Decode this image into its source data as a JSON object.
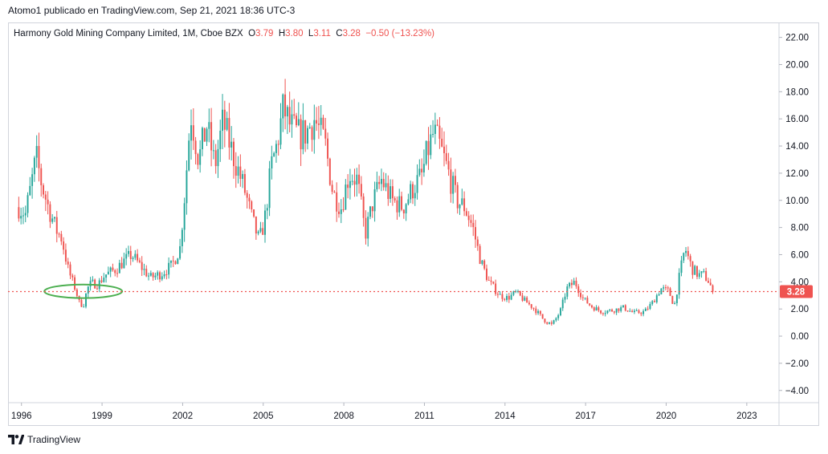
{
  "publication": {
    "text": "Atomo1 publicado en TradingView.com, Sep 21, 2021 18:36 UTC-3"
  },
  "legend": {
    "symbol": "Harmony Gold Mining Company Limited, 1M, Cboe BZX",
    "o_label": "O",
    "o": "3.79",
    "h_label": "H",
    "h": "3.80",
    "l_label": "L",
    "l": "3.11",
    "c_label": "C",
    "c": "3.28",
    "change": "−0.50 (−13.23%)"
  },
  "footer": {
    "brand": "TradingView",
    "logo_icon": "tradingview-logo-icon"
  },
  "colors": {
    "up": "#26a69a",
    "down": "#ef5350",
    "last_price_line": "#ef5350",
    "annotation": "#4caf50"
  },
  "chart_data": {
    "type": "candlestick",
    "interval": "1M",
    "yticks": [
      "22.00",
      "20.00",
      "18.00",
      "16.00",
      "14.00",
      "12.00",
      "10.00",
      "8.00",
      "6.00",
      "4.00",
      "2.00",
      "0.00",
      "−2.00",
      "−4.00"
    ],
    "ylim": [
      -4.9,
      23.1
    ],
    "xticks": [
      "1996",
      "1999",
      "2002",
      "2005",
      "2008",
      "2011",
      "2014",
      "2017",
      "2020",
      "2023"
    ],
    "xlim": [
      1995.5,
      2024.2
    ],
    "last_price": 3.28,
    "last_price_label": "3.28",
    "annotation": {
      "shape": "ellipse",
      "x_center": 1998.3,
      "y_center": 3.3,
      "x_radius": 1.45,
      "y_radius": 0.5
    },
    "anchors": [
      [
        1995.9,
        9.5
      ],
      [
        1996.15,
        9.0
      ],
      [
        1996.35,
        11.0
      ],
      [
        1996.55,
        13.2
      ],
      [
        1996.75,
        11.2
      ],
      [
        1997.0,
        9.5
      ],
      [
        1997.3,
        7.8
      ],
      [
        1997.5,
        7.2
      ],
      [
        1997.75,
        4.8
      ],
      [
        1998.0,
        3.5
      ],
      [
        1998.15,
        2.5
      ],
      [
        1998.3,
        2.2
      ],
      [
        1998.45,
        3.5
      ],
      [
        1998.6,
        3.9
      ],
      [
        1998.85,
        3.8
      ],
      [
        1999.1,
        4.5
      ],
      [
        1999.5,
        4.9
      ],
      [
        1999.8,
        5.5
      ],
      [
        2000.1,
        6.0
      ],
      [
        2000.5,
        5.0
      ],
      [
        2000.8,
        4.3
      ],
      [
        2001.2,
        4.6
      ],
      [
        2001.6,
        5.2
      ],
      [
        2001.9,
        6.5
      ],
      [
        2002.1,
        11.0
      ],
      [
        2002.3,
        16.5
      ],
      [
        2002.6,
        13.0
      ],
      [
        2002.9,
        15.5
      ],
      [
        2003.2,
        12.5
      ],
      [
        2003.5,
        15.8
      ],
      [
        2003.9,
        13.2
      ],
      [
        2004.3,
        10.8
      ],
      [
        2004.6,
        8.5
      ],
      [
        2004.85,
        7.0
      ],
      [
        2005.05,
        8.5
      ],
      [
        2005.3,
        12.5
      ],
      [
        2005.5,
        14.0
      ],
      [
        2005.75,
        16.8
      ],
      [
        2006.0,
        15.5
      ],
      [
        2006.3,
        14.8
      ],
      [
        2006.6,
        15.0
      ],
      [
        2006.9,
        16.0
      ],
      [
        2007.3,
        14.2
      ],
      [
        2007.6,
        10.5
      ],
      [
        2007.9,
        9.5
      ],
      [
        2008.2,
        12.0
      ],
      [
        2008.5,
        11.5
      ],
      [
        2008.8,
        7.5
      ],
      [
        2009.1,
        10.0
      ],
      [
        2009.4,
        11.5
      ],
      [
        2009.8,
        10.0
      ],
      [
        2010.2,
        9.5
      ],
      [
        2010.6,
        11.0
      ],
      [
        2010.9,
        11.8
      ],
      [
        2011.1,
        13.5
      ],
      [
        2011.35,
        15.0
      ],
      [
        2011.6,
        13.8
      ],
      [
        2011.9,
        12.0
      ],
      [
        2012.2,
        10.0
      ],
      [
        2012.5,
        9.5
      ],
      [
        2012.8,
        8.0
      ],
      [
        2013.1,
        5.5
      ],
      [
        2013.4,
        4.0
      ],
      [
        2013.8,
        3.0
      ],
      [
        2014.1,
        2.8
      ],
      [
        2014.4,
        3.2
      ],
      [
        2014.8,
        2.5
      ],
      [
        2015.1,
        2.0
      ],
      [
        2015.4,
        1.3
      ],
      [
        2015.75,
        0.8
      ],
      [
        2016.05,
        1.8
      ],
      [
        2016.3,
        3.5
      ],
      [
        2016.6,
        4.0
      ],
      [
        2016.9,
        2.8
      ],
      [
        2017.2,
        2.2
      ],
      [
        2017.6,
        1.8
      ],
      [
        2018.0,
        1.9
      ],
      [
        2018.4,
        2.1
      ],
      [
        2018.8,
        1.7
      ],
      [
        2019.2,
        1.8
      ],
      [
        2019.5,
        2.5
      ],
      [
        2019.8,
        3.5
      ],
      [
        2020.1,
        3.3
      ],
      [
        2020.3,
        2.2
      ],
      [
        2020.5,
        4.5
      ],
      [
        2020.7,
        6.5
      ],
      [
        2020.95,
        5.0
      ],
      [
        2021.2,
        4.5
      ],
      [
        2021.4,
        4.5
      ],
      [
        2021.6,
        4.0
      ],
      [
        2021.72,
        3.28
      ]
    ]
  }
}
